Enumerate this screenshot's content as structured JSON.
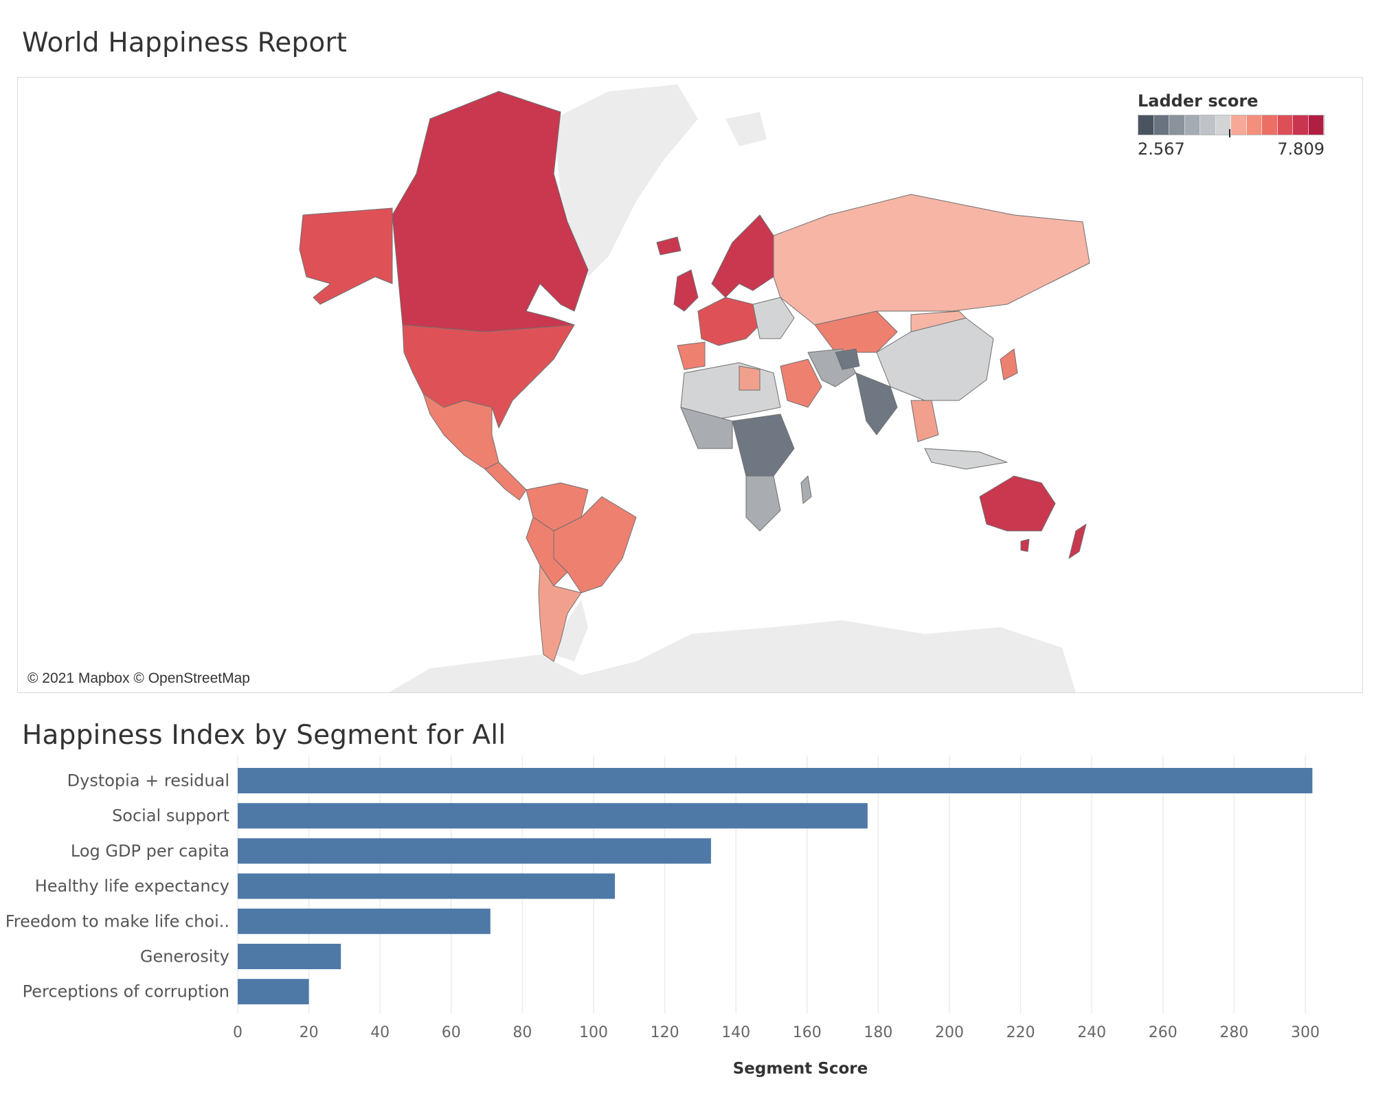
{
  "map": {
    "title": "World Happiness Report",
    "legend": {
      "title": "Ladder score",
      "min_label": "2.567",
      "max_label": "7.809",
      "palette": [
        "#4a5461",
        "#6a7480",
        "#8a929b",
        "#a5abb2",
        "#bfc3c7",
        "#d2d4d6",
        "#f7a896",
        "#f48f7e",
        "#ec6f66",
        "#dc4f57",
        "#c9344f",
        "#b01e42"
      ]
    },
    "attribution": "© 2021 Mapbox © OpenStreetMap",
    "colors": {
      "very_high": "#c9384f",
      "high": "#de5257",
      "mid_high": "#ee8070",
      "mid": "#f2a08e",
      "light": "#f6b5a5",
      "neutral": "#d3d4d6",
      "low": "#a9adb2",
      "very_low": "#6f7882",
      "no_data": "#ececec"
    }
  },
  "chart_data": {
    "type": "bar",
    "orientation": "horizontal",
    "title": "Happiness Index by Segment for All",
    "xlabel": "Segment Score",
    "ylabel": "",
    "categories": [
      "Dystopia + residual",
      "Social support",
      "Log GDP per capita",
      "Healthy life expectancy",
      "Freedom to make life choi..",
      "Generosity",
      "Perceptions of corruption"
    ],
    "values": [
      302,
      177,
      133,
      106,
      71,
      29,
      20
    ],
    "xlim": [
      0,
      310
    ],
    "xticks": [
      0,
      20,
      40,
      60,
      80,
      100,
      120,
      140,
      160,
      180,
      200,
      220,
      240,
      260,
      280,
      300
    ],
    "grid": true,
    "color": "#4e79a7"
  }
}
